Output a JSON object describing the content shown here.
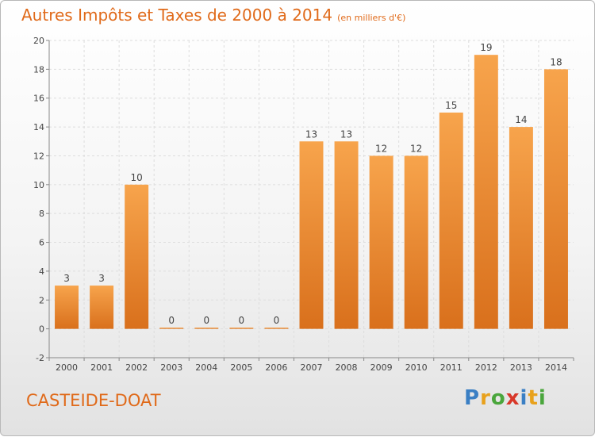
{
  "header": {
    "title": "Autres Impôts et Taxes de 2000 à 2014",
    "subtitle": "(en milliers d'€)"
  },
  "footer": {
    "place": "CASTEIDE-DOAT",
    "brand_parts": [
      "P",
      "r",
      "o",
      "x",
      "i",
      "t",
      "i"
    ],
    "brand_colors": [
      "#3a7fc4",
      "#e8a11c",
      "#4aa63c",
      "#d8382a",
      "#3a7fc4",
      "#e8a11c",
      "#4aa63c"
    ]
  },
  "colors": {
    "bar_light": "#f7a44c",
    "bar_dark": "#d9701c",
    "accent": "#e06a1a",
    "axis": "#888888",
    "grid": "#dddddd"
  },
  "chart_data": {
    "type": "bar",
    "categories": [
      "2000",
      "2001",
      "2002",
      "2003",
      "2004",
      "2005",
      "2006",
      "2007",
      "2008",
      "2009",
      "2010",
      "2011",
      "2012",
      "2013",
      "2014"
    ],
    "values": [
      3,
      3,
      10,
      0,
      0,
      0,
      0,
      13,
      13,
      12,
      12,
      15,
      19,
      14,
      18
    ],
    "ylim": [
      -2,
      20
    ],
    "yticks": [
      -2,
      0,
      2,
      4,
      6,
      8,
      10,
      12,
      14,
      16,
      18,
      20
    ],
    "grid": true
  }
}
